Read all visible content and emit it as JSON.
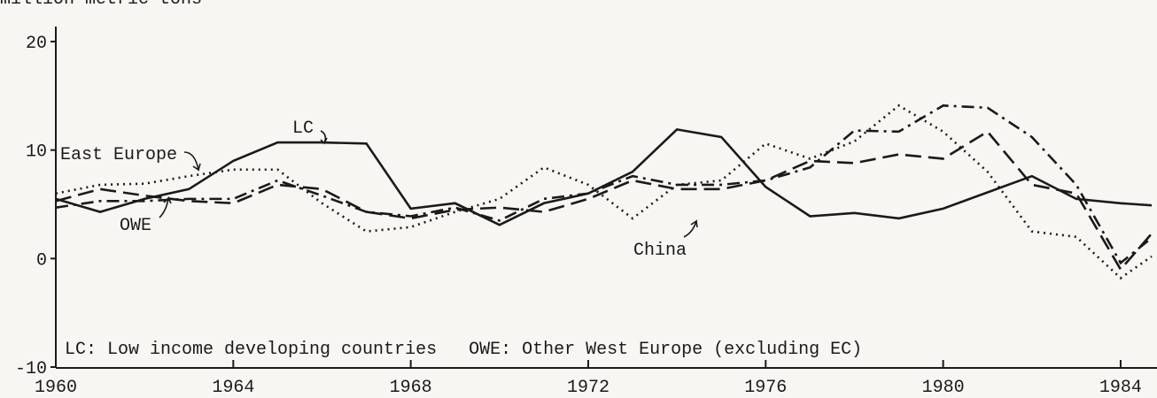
{
  "chart_data": {
    "type": "line",
    "y_label": "million metric tons",
    "annotations": [
      "LC",
      "East Europe",
      "OWE",
      "China",
      "LC: Low income developing countries   OWE: Other West Europe (excluding EC)"
    ],
    "x": [
      1960,
      1961,
      1962,
      1963,
      1964,
      1965,
      1966,
      1967,
      1968,
      1969,
      1970,
      1971,
      1972,
      1973,
      1974,
      1975,
      1976,
      1977,
      1978,
      1979,
      1980,
      1981,
      1982,
      1983,
      1984,
      1984.7
    ],
    "series": [
      {
        "name": "LC",
        "color": "#1a1a1a",
        "line_style": "solid",
        "values": [
          5.5,
          4.3,
          5.5,
          6.4,
          9,
          10.7,
          10.7,
          10.6,
          4.6,
          5.1,
          3.1,
          5.1,
          6,
          8,
          11.9,
          11.2,
          6.6,
          3.9,
          4.2,
          3.7,
          4.6,
          6.1,
          7.6,
          5.5,
          5.1,
          4.9
        ]
      },
      {
        "name": "East Europe",
        "color": "#1a1a1a",
        "line_style": "dotted",
        "values": [
          6,
          6.8,
          6.9,
          7.6,
          8.2,
          8.2,
          5.1,
          2.5,
          2.9,
          4.3,
          5.5,
          8.4,
          6.8,
          3.7,
          6.8,
          7.2,
          10.6,
          9.2,
          10.8,
          14.1,
          11.7,
          8,
          2.5,
          2,
          -1.8,
          0.2
        ]
      },
      {
        "name": "OWE",
        "color": "#1a1a1a",
        "line_style": "dashed",
        "values": [
          5.3,
          6.4,
          5.8,
          5.3,
          5.1,
          6.8,
          6.4,
          4.3,
          3.7,
          4.5,
          4.7,
          4.3,
          5.5,
          7.2,
          6.4,
          6.4,
          7.2,
          9,
          8.8,
          9.6,
          9.2,
          11.7,
          6.8,
          6,
          -1,
          2.3
        ]
      },
      {
        "name": "China",
        "color": "#1a1a1a",
        "line_style": "dashdot",
        "values": [
          4.7,
          5.3,
          5.3,
          5.5,
          5.5,
          7.2,
          5.8,
          4.3,
          3.9,
          4.7,
          3.5,
          5.5,
          6,
          7.6,
          6.8,
          6.8,
          7.2,
          8.4,
          11.8,
          11.7,
          14.1,
          13.9,
          11.2,
          6.8,
          -0.4,
          1.9
        ]
      }
    ],
    "xlim": [
      1960,
      1984.7
    ],
    "xticks": [
      1960,
      1964,
      1968,
      1972,
      1976,
      1980,
      1984
    ],
    "ylim": [
      -10,
      20
    ],
    "yticks": [
      -10,
      0,
      10,
      20
    ],
    "grid": false,
    "legend": false
  }
}
